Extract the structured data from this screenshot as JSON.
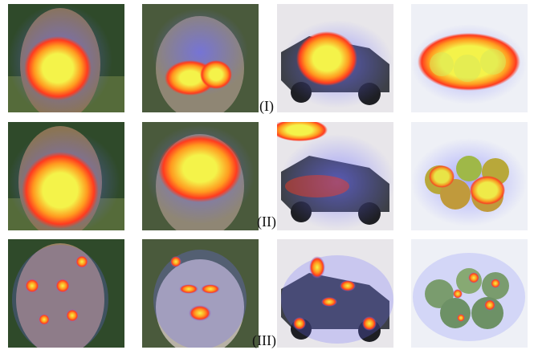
{
  "row_labels": [
    "(I)",
    "(II)",
    "(III)"
  ],
  "columns": [
    {
      "subject": "cougar",
      "bg": "#2f4a2a",
      "body": "#8a7456"
    },
    {
      "subject": "monkey",
      "bg": "#4a5a3c",
      "body": "#8f8674"
    },
    {
      "subject": "toy-car",
      "bg": "#e8e6ea",
      "body": "#3d4048"
    },
    {
      "subject": "apples",
      "bg": "#eef0f6",
      "body": "#7fa84a"
    }
  ],
  "colors": {
    "overlay_blue": "#6b6cff",
    "heat_red": "#ff3b1f",
    "heat_orange": "#ff9a1f",
    "heat_yellow": "#f4f34a"
  }
}
